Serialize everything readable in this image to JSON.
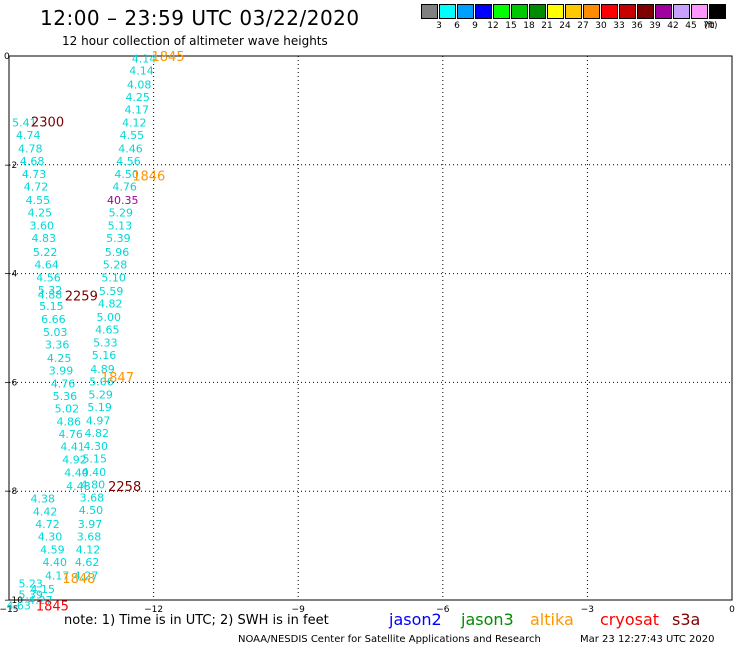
{
  "title": "12:00 – 23:59 UTC 03/22/2020",
  "subtitle": "12 hour collection of altimeter wave heights",
  "colorbar": {
    "unit": "(ft)",
    "bins": [
      {
        "label": "3",
        "color": "#808080"
      },
      {
        "label": "6",
        "color": "#00ffff"
      },
      {
        "label": "9",
        "color": "#00a0ff"
      },
      {
        "label": "12",
        "color": "#0000ff"
      },
      {
        "label": "15",
        "color": "#00ff00"
      },
      {
        "label": "18",
        "color": "#00c800"
      },
      {
        "label": "21",
        "color": "#008c00"
      },
      {
        "label": "24",
        "color": "#ffff00"
      },
      {
        "label": "27",
        "color": "#ffc800"
      },
      {
        "label": "30",
        "color": "#ff8c00"
      },
      {
        "label": "33",
        "color": "#ff0000"
      },
      {
        "label": "36",
        "color": "#c80000"
      },
      {
        "label": "39",
        "color": "#800000"
      },
      {
        "label": "42",
        "color": "#a000a0"
      },
      {
        "label": "45",
        "color": "#c8a0ff"
      },
      {
        "label": "70",
        "color": "#ff96ff"
      },
      {
        "label": "",
        "color": "#000000"
      }
    ]
  },
  "chart_data": {
    "type": "scatter",
    "xlim": [
      -15,
      0
    ],
    "ylim": [
      -10,
      0
    ],
    "x_ticks": [
      -15,
      -12,
      -9,
      -6,
      -3,
      0
    ],
    "y_ticks": [
      0,
      -2,
      -4,
      -6,
      -8,
      -10
    ],
    "x_tick_labels": [
      "−15",
      "−12",
      "−9",
      "−6",
      "−3",
      "0"
    ],
    "y_tick_labels": [
      "0",
      "−2",
      "−4",
      "−6",
      "−8",
      "−10"
    ],
    "grid": true,
    "points": [
      {
        "x": -12.2,
        "y": -0.05,
        "label": "4.14",
        "color": "#00d8d8"
      },
      {
        "x": -12.25,
        "y": -0.27,
        "label": "4.14",
        "color": "#00d8d8"
      },
      {
        "x": -12.3,
        "y": -0.52,
        "label": "4.08",
        "color": "#00d8d8"
      },
      {
        "x": -12.33,
        "y": -0.75,
        "label": "4.25",
        "color": "#00d8d8"
      },
      {
        "x": -12.35,
        "y": -0.98,
        "label": "4.17",
        "color": "#00d8d8"
      },
      {
        "x": -12.4,
        "y": -1.22,
        "label": "4.12",
        "color": "#00d8d8"
      },
      {
        "x": -12.45,
        "y": -1.45,
        "label": "4.55",
        "color": "#00d8d8"
      },
      {
        "x": -12.48,
        "y": -1.7,
        "label": "4.46",
        "color": "#00d8d8"
      },
      {
        "x": -12.52,
        "y": -1.93,
        "label": "4.56",
        "color": "#00d8d8"
      },
      {
        "x": -12.56,
        "y": -2.17,
        "label": "4.50",
        "color": "#00d8d8"
      },
      {
        "x": -12.6,
        "y": -2.4,
        "label": "4.76",
        "color": "#00d8d8"
      },
      {
        "x": -12.64,
        "y": -2.65,
        "label": "40.35",
        "color": "#a000a0"
      },
      {
        "x": -12.68,
        "y": -2.88,
        "label": "5.29",
        "color": "#00d8d8"
      },
      {
        "x": -12.7,
        "y": -3.12,
        "label": "5.13",
        "color": "#00d8d8"
      },
      {
        "x": -12.73,
        "y": -3.35,
        "label": "5.39",
        "color": "#00d8d8"
      },
      {
        "x": -12.76,
        "y": -3.6,
        "label": "5.96",
        "color": "#00d8d8"
      },
      {
        "x": -12.8,
        "y": -3.83,
        "label": "5.28",
        "color": "#00d8d8"
      },
      {
        "x": -12.83,
        "y": -4.07,
        "label": "5.10",
        "color": "#00d8d8"
      },
      {
        "x": -12.88,
        "y": -4.32,
        "label": "5.59",
        "color": "#00d8d8"
      },
      {
        "x": -12.9,
        "y": -4.55,
        "label": "4.82",
        "color": "#00d8d8"
      },
      {
        "x": -12.93,
        "y": -4.8,
        "label": "5.00",
        "color": "#00d8d8"
      },
      {
        "x": -12.96,
        "y": -5.03,
        "label": "4.65",
        "color": "#00d8d8"
      },
      {
        "x": -13.0,
        "y": -5.27,
        "label": "5.33",
        "color": "#00d8d8"
      },
      {
        "x": -13.03,
        "y": -5.5,
        "label": "5.16",
        "color": "#00d8d8"
      },
      {
        "x": -13.06,
        "y": -5.75,
        "label": "4.89",
        "color": "#00d8d8"
      },
      {
        "x": -13.08,
        "y": -5.98,
        "label": "5.06",
        "color": "#00d8d8"
      },
      {
        "x": -13.1,
        "y": -6.22,
        "label": "5.29",
        "color": "#00d8d8"
      },
      {
        "x": -13.12,
        "y": -6.45,
        "label": "5.19",
        "color": "#00d8d8"
      },
      {
        "x": -13.15,
        "y": -6.7,
        "label": "4.97",
        "color": "#00d8d8"
      },
      {
        "x": -13.18,
        "y": -6.93,
        "label": "4.82",
        "color": "#00d8d8"
      },
      {
        "x": -13.2,
        "y": -7.17,
        "label": "4.30",
        "color": "#00d8d8"
      },
      {
        "x": -13.22,
        "y": -7.4,
        "label": "5.15",
        "color": "#00d8d8"
      },
      {
        "x": -13.24,
        "y": -7.65,
        "label": "4.40",
        "color": "#00d8d8"
      },
      {
        "x": -13.26,
        "y": -7.88,
        "label": "4.80",
        "color": "#00d8d8"
      },
      {
        "x": -13.28,
        "y": -8.12,
        "label": "3.68",
        "color": "#00d8d8"
      },
      {
        "x": -13.3,
        "y": -8.35,
        "label": "4.50",
        "color": "#00d8d8"
      },
      {
        "x": -13.32,
        "y": -8.6,
        "label": "3.97",
        "color": "#00d8d8"
      },
      {
        "x": -13.34,
        "y": -8.83,
        "label": "3.68",
        "color": "#00d8d8"
      },
      {
        "x": -13.36,
        "y": -9.07,
        "label": "4.12",
        "color": "#00d8d8"
      },
      {
        "x": -13.38,
        "y": -9.3,
        "label": "4.62",
        "color": "#00d8d8"
      },
      {
        "x": -13.4,
        "y": -9.55,
        "label": "4.27",
        "color": "#00d8d8"
      },
      {
        "x": -14.68,
        "y": -1.22,
        "label": "5.41",
        "color": "#00d8d8"
      },
      {
        "x": -14.6,
        "y": -1.45,
        "label": "4.74",
        "color": "#00d8d8"
      },
      {
        "x": -14.56,
        "y": -1.7,
        "label": "4.78",
        "color": "#00d8d8"
      },
      {
        "x": -14.52,
        "y": -1.93,
        "label": "4.68",
        "color": "#00d8d8"
      },
      {
        "x": -14.48,
        "y": -2.17,
        "label": "4.73",
        "color": "#00d8d8"
      },
      {
        "x": -14.44,
        "y": -2.4,
        "label": "4.72",
        "color": "#00d8d8"
      },
      {
        "x": -14.4,
        "y": -2.65,
        "label": "4.55",
        "color": "#00d8d8"
      },
      {
        "x": -14.36,
        "y": -2.88,
        "label": "4.25",
        "color": "#00d8d8"
      },
      {
        "x": -14.32,
        "y": -3.12,
        "label": "3.60",
        "color": "#00d8d8"
      },
      {
        "x": -14.28,
        "y": -3.35,
        "label": "4.83",
        "color": "#00d8d8"
      },
      {
        "x": -14.25,
        "y": -3.6,
        "label": "5.22",
        "color": "#00d8d8"
      },
      {
        "x": -14.22,
        "y": -3.83,
        "label": "4.64",
        "color": "#00d8d8"
      },
      {
        "x": -14.18,
        "y": -4.07,
        "label": "4.56",
        "color": "#00d8d8"
      },
      {
        "x": -14.15,
        "y": -4.3,
        "label": "5.32",
        "color": "#00d8d8"
      },
      {
        "x": -14.15,
        "y": -4.38,
        "label": "4.88",
        "color": "#00d8d8"
      },
      {
        "x": -14.12,
        "y": -4.6,
        "label": "5.15",
        "color": "#00d8d8"
      },
      {
        "x": -14.08,
        "y": -4.83,
        "label": "6.66",
        "color": "#00d8d8"
      },
      {
        "x": -14.04,
        "y": -5.07,
        "label": "5.03",
        "color": "#00d8d8"
      },
      {
        "x": -14.0,
        "y": -5.3,
        "label": "3.36",
        "color": "#00d8d8"
      },
      {
        "x": -13.96,
        "y": -5.55,
        "label": "4.25",
        "color": "#00d8d8"
      },
      {
        "x": -13.92,
        "y": -5.78,
        "label": "3.99",
        "color": "#00d8d8"
      },
      {
        "x": -13.88,
        "y": -6.02,
        "label": "4.76",
        "color": "#00d8d8"
      },
      {
        "x": -13.84,
        "y": -6.25,
        "label": "5.36",
        "color": "#00d8d8"
      },
      {
        "x": -13.8,
        "y": -6.48,
        "label": "5.02",
        "color": "#00d8d8"
      },
      {
        "x": -13.76,
        "y": -6.72,
        "label": "4.86",
        "color": "#00d8d8"
      },
      {
        "x": -13.72,
        "y": -6.95,
        "label": "4.76",
        "color": "#00d8d8"
      },
      {
        "x": -13.68,
        "y": -7.18,
        "label": "4.41",
        "color": "#00d8d8"
      },
      {
        "x": -13.64,
        "y": -7.42,
        "label": "4.92",
        "color": "#00d8d8"
      },
      {
        "x": -13.6,
        "y": -7.66,
        "label": "4.40",
        "color": "#00d8d8"
      },
      {
        "x": -13.56,
        "y": -7.9,
        "label": "4.48",
        "color": "#00d8d8"
      },
      {
        "x": -14.3,
        "y": -8.13,
        "label": "4.38",
        "color": "#00d8d8"
      },
      {
        "x": -14.25,
        "y": -8.37,
        "label": "4.42",
        "color": "#00d8d8"
      },
      {
        "x": -14.2,
        "y": -8.6,
        "label": "4.72",
        "color": "#00d8d8"
      },
      {
        "x": -14.15,
        "y": -8.83,
        "label": "4.30",
        "color": "#00d8d8"
      },
      {
        "x": -14.1,
        "y": -9.07,
        "label": "4.59",
        "color": "#00d8d8"
      },
      {
        "x": -14.05,
        "y": -9.3,
        "label": "4.40",
        "color": "#00d8d8"
      },
      {
        "x": -14.0,
        "y": -9.55,
        "label": "4.17",
        "color": "#00d8d8"
      },
      {
        "x": -14.55,
        "y": -9.7,
        "label": "5.23",
        "color": "#00d8d8"
      },
      {
        "x": -14.3,
        "y": -9.8,
        "label": "4.15",
        "color": "#00d8d8"
      },
      {
        "x": -14.55,
        "y": -9.9,
        "label": "5.39",
        "color": "#00d8d8"
      },
      {
        "x": -14.35,
        "y": -10.0,
        "label": "4.27",
        "color": "#00d8d8"
      },
      {
        "x": -14.8,
        "y": -10.1,
        "label": "4.63",
        "color": "#00d8d8"
      }
    ],
    "time_labels": [
      {
        "x": -11.7,
        "y": 0.0,
        "label": "1845",
        "color": "#ff9600"
      },
      {
        "x": -14.2,
        "y": -1.2,
        "label": "2300",
        "color": "#800000"
      },
      {
        "x": -12.1,
        "y": -2.2,
        "label": "1846",
        "color": "#ff9600"
      },
      {
        "x": -13.5,
        "y": -4.4,
        "label": "2259",
        "color": "#800000"
      },
      {
        "x": -12.75,
        "y": -5.9,
        "label": "1847",
        "color": "#ff9600"
      },
      {
        "x": -12.6,
        "y": -7.9,
        "label": "2258",
        "color": "#800000"
      },
      {
        "x": -13.55,
        "y": -9.6,
        "label": "1848",
        "color": "#ff9600"
      },
      {
        "x": -14.1,
        "y": -10.1,
        "label": "1845",
        "color": "#ff0000"
      }
    ]
  },
  "note": "note:  1) Time is in UTC; 2) SWH is in feet",
  "satellites": [
    {
      "name": "jason2",
      "color": "#0000ff"
    },
    {
      "name": "jason3",
      "color": "#008c00"
    },
    {
      "name": "altika",
      "color": "#ff9600"
    },
    {
      "name": "cryosat",
      "color": "#ff0000"
    },
    {
      "name": "s3a",
      "color": "#800000"
    }
  ],
  "credit": "NOAA/NESDIS Center for Satellite Applications and Research",
  "timestamp": "Mar 23 12:27:43 UTC 2020"
}
